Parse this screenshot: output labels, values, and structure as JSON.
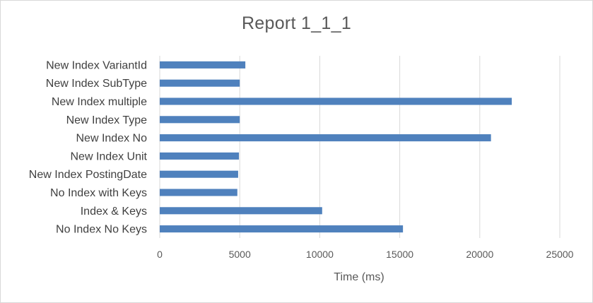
{
  "chart_data": {
    "type": "bar",
    "orientation": "horizontal",
    "title": "Report 1_1_1",
    "xlabel": "Time (ms)",
    "ylabel": "",
    "categories": [
      "No Index No Keys",
      "Index & Keys",
      "No Index with Keys",
      "New Index PostingDate",
      "New Index Unit",
      "New Index No",
      "New Index Type",
      "New Index multiple",
      "New Index SubType",
      "New Index VariantId"
    ],
    "values": [
      15200,
      10150,
      4850,
      4900,
      4950,
      20700,
      5000,
      22000,
      5000,
      5350
    ],
    "xlim": [
      0,
      25000
    ],
    "xticks": [
      "0",
      "5000",
      "10000",
      "15000",
      "20000",
      "25000"
    ],
    "grid": "vertical",
    "legend": "none",
    "bar_color": "#4f81bd",
    "grid_color": "#d9d9d9"
  }
}
